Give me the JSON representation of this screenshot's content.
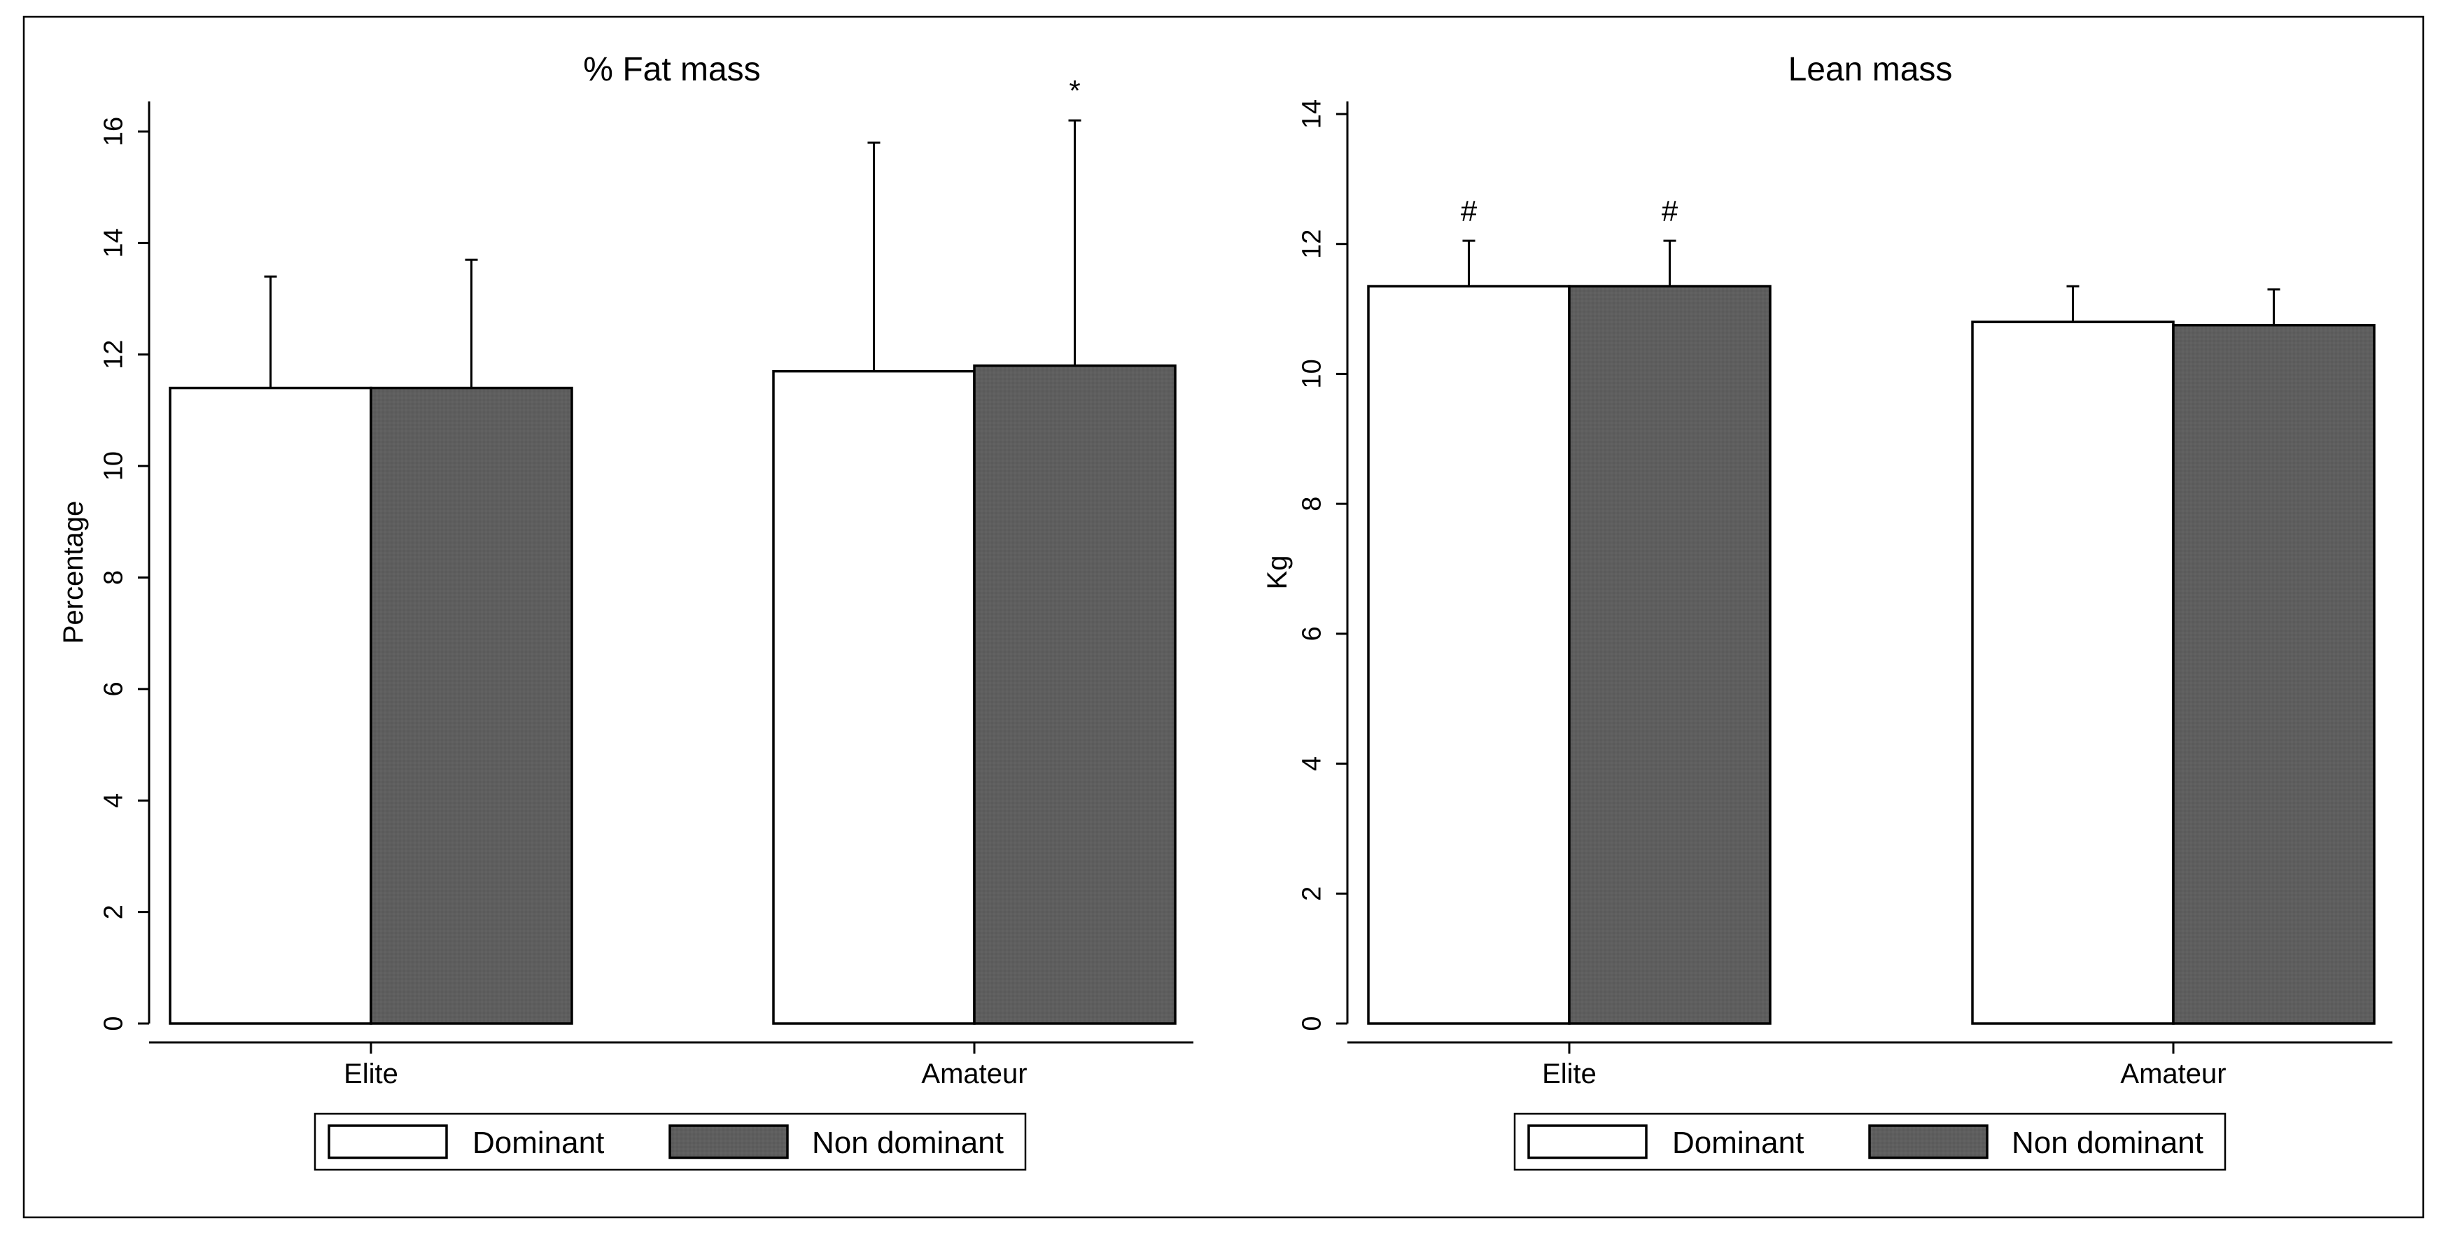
{
  "colors": {
    "dominant": "#ffffff",
    "non_dominant": "#5e5e5e",
    "stroke": "#000000"
  },
  "chart_data": [
    {
      "type": "bar",
      "title": "% Fat mass",
      "xlabel": "",
      "ylabel": "Percentage",
      "ylim": [
        0,
        16.5
      ],
      "yticks": [
        0,
        2,
        4,
        6,
        8,
        10,
        12,
        14,
        16
      ],
      "categories": [
        "Elite",
        "Amateur"
      ],
      "series": [
        {
          "name": "Dominant",
          "values": [
            11.4,
            11.7
          ],
          "error": [
            2.0,
            4.1
          ]
        },
        {
          "name": "Non dominant",
          "values": [
            11.4,
            11.8
          ],
          "error": [
            2.3,
            4.4
          ]
        }
      ],
      "annotations": [
        {
          "category": "Amateur",
          "series": "Non dominant",
          "text": "*"
        }
      ],
      "legend": {
        "position": "bottom",
        "labels": [
          "Dominant",
          "Non dominant"
        ]
      },
      "grid": false
    },
    {
      "type": "bar",
      "title": "Lean mass",
      "xlabel": "",
      "ylabel": "Kg",
      "ylim": [
        0,
        14.2
      ],
      "yticks": [
        0,
        2,
        4,
        6,
        8,
        10,
        12,
        14
      ],
      "categories": [
        "Elite",
        "Amateur"
      ],
      "series": [
        {
          "name": "Dominant",
          "values": [
            11.35,
            10.8
          ],
          "error": [
            0.7,
            0.55
          ]
        },
        {
          "name": "Non dominant",
          "values": [
            11.35,
            10.75
          ],
          "error": [
            0.7,
            0.55
          ]
        }
      ],
      "annotations": [
        {
          "category": "Elite",
          "series": "Dominant",
          "text": "#"
        },
        {
          "category": "Elite",
          "series": "Non dominant",
          "text": "#"
        }
      ],
      "legend": {
        "position": "bottom",
        "labels": [
          "Dominant",
          "Non dominant"
        ]
      },
      "grid": false
    }
  ]
}
